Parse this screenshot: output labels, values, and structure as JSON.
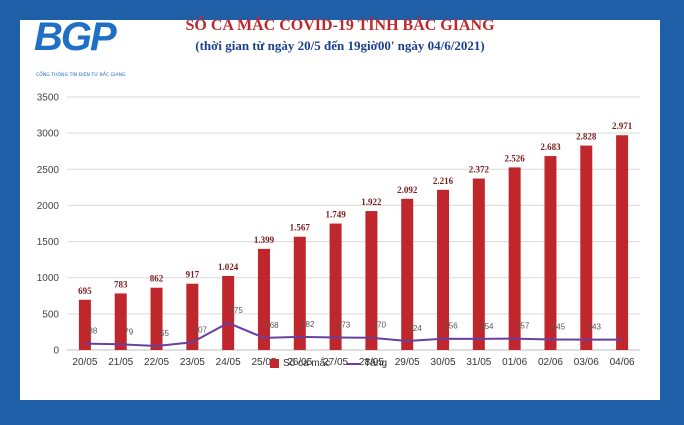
{
  "header": {
    "logo_text": "BGP",
    "logo_caption": "CỔNG THÔNG TIN ĐIỆN TỬ BẮC GIANG",
    "title": "SỐ CA MẮC COVID-19 TỈNH BẮC GIANG",
    "subtitle": "(thời gian từ ngày 20/5 đến 19giờ00' ngày 04/6/2021)"
  },
  "colors": {
    "frame": "#1f5fa8",
    "bar": "#c0272d",
    "line": "#6a3fa0",
    "title": "#c0272d",
    "subtitle": "#1b3f8f"
  },
  "chart_data": {
    "type": "bar",
    "categories": [
      "20/05",
      "21/05",
      "22/05",
      "23/05",
      "24/05",
      "25/05",
      "26/05",
      "27/05",
      "28/05",
      "29/05",
      "30/05",
      "31/05",
      "01/06",
      "02/06",
      "03/06",
      "04/06"
    ],
    "series": [
      {
        "name": "Số ca mắc",
        "type": "bar",
        "values": [
          695,
          783,
          862,
          917,
          1024,
          1399,
          1567,
          1749,
          1922,
          2092,
          2216,
          2372,
          2526,
          2683,
          2828,
          2971
        ],
        "labels": [
          "695",
          "783",
          "862",
          "917",
          "1.024",
          "1.399",
          "1.567",
          "1.749",
          "1.922",
          "2.092",
          "2.216",
          "2.372",
          "2.526",
          "2.683",
          "2.828",
          "2.971"
        ]
      },
      {
        "name": "Tăng",
        "type": "line",
        "values": [
          88,
          79,
          55,
          107,
          375,
          168,
          182,
          173,
          170,
          124,
          156,
          154,
          157,
          145,
          143,
          143
        ],
        "labels": [
          "88",
          "79",
          "55",
          "107",
          "375",
          "168",
          "182",
          "173",
          "170",
          "124",
          "156",
          "154",
          "157",
          "145",
          "143",
          ""
        ]
      }
    ],
    "yticks": [
      "0",
      "500",
      "1000",
      "1500",
      "2000",
      "2500",
      "3000",
      "3500"
    ],
    "ylim": [
      0,
      3500
    ],
    "grid": true,
    "legend_position": "bottom"
  }
}
